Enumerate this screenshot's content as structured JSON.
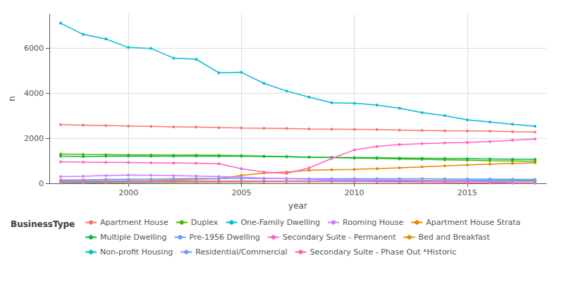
{
  "chart_data": {
    "type": "line",
    "x": [
      1997,
      1998,
      1999,
      2000,
      2001,
      2002,
      2003,
      2004,
      2005,
      2006,
      2007,
      2008,
      2009,
      2010,
      2011,
      2012,
      2013,
      2014,
      2015,
      2016,
      2017,
      2018
    ],
    "series": [
      {
        "name": "Apartment House",
        "color": "#F8766D",
        "values": [
          2600,
          2580,
          2560,
          2540,
          2520,
          2500,
          2490,
          2470,
          2450,
          2440,
          2430,
          2410,
          2400,
          2390,
          2380,
          2360,
          2340,
          2330,
          2320,
          2310,
          2290,
          2270
        ]
      },
      {
        "name": "Apartment House Strata",
        "color": "#E58700",
        "values": [
          50,
          60,
          80,
          100,
          120,
          150,
          180,
          200,
          350,
          450,
          500,
          580,
          600,
          620,
          650,
          690,
          730,
          770,
          810,
          850,
          880,
          910
        ]
      },
      {
        "name": "Bed and Breakfast",
        "color": "#C99800",
        "values": [
          18,
          22,
          27,
          32,
          37,
          42,
          47,
          52,
          57,
          62,
          67,
          72,
          77,
          82,
          86,
          88,
          90,
          91,
          92,
          91,
          90,
          89
        ]
      },
      {
        "name": "Duplex",
        "color": "#53B400",
        "values": [
          1300,
          1280,
          1270,
          1260,
          1260,
          1250,
          1250,
          1240,
          1230,
          1200,
          1180,
          1160,
          1140,
          1120,
          1100,
          1080,
          1060,
          1040,
          1020,
          1000,
          990,
          980
        ]
      },
      {
        "name": "Multiple Dwelling",
        "color": "#00BA38",
        "values": [
          1200,
          1190,
          1200,
          1210,
          1200,
          1200,
          1210,
          1200,
          1200,
          1190,
          1180,
          1160,
          1150,
          1140,
          1130,
          1120,
          1110,
          1100,
          1090,
          1080,
          1070,
          1060
        ]
      },
      {
        "name": "Non-profit Housing",
        "color": "#00BFC4",
        "values": [
          60,
          65,
          70,
          75,
          80,
          85,
          90,
          95,
          100,
          105,
          105,
          105,
          108,
          110,
          112,
          115,
          118,
          120,
          122,
          125,
          127,
          130
        ]
      },
      {
        "name": "One-Family Dwelling",
        "color": "#00BCD8",
        "values": [
          7100,
          6600,
          6400,
          6020,
          5980,
          5550,
          5500,
          4900,
          4920,
          4430,
          4090,
          3820,
          3570,
          3550,
          3470,
          3330,
          3130,
          3000,
          2810,
          2720,
          2620,
          2530
        ]
      },
      {
        "name": "Pre-1956 Dwelling",
        "color": "#619CFF",
        "values": [
          150,
          160,
          170,
          180,
          190,
          200,
          210,
          210,
          210,
          210,
          210,
          205,
          200,
          200,
          200,
          200,
          200,
          195,
          190,
          185,
          180,
          175
        ]
      },
      {
        "name": "Residential/Commercial",
        "color": "#6C9EFF",
        "values": [
          50,
          55,
          60,
          65,
          70,
          75,
          80,
          85,
          90,
          95,
          100,
          105,
          108,
          110,
          112,
          114,
          116,
          118,
          120,
          122,
          125,
          130
        ]
      },
      {
        "name": "Rooming House",
        "color": "#C77CFF",
        "values": [
          300,
          310,
          340,
          370,
          360,
          340,
          320,
          300,
          270,
          230,
          200,
          180,
          160,
          155,
          150,
          145,
          130,
          115,
          90,
          60,
          35,
          15
        ]
      },
      {
        "name": "Secondary Suite - Permanent",
        "color": "#FF61C3",
        "values": [
          950,
          940,
          930,
          920,
          910,
          900,
          890,
          870,
          650,
          500,
          440,
          680,
          1100,
          1480,
          1630,
          1720,
          1760,
          1790,
          1810,
          1850,
          1910,
          1960
        ]
      },
      {
        "name": "Secondary Suite - Phase Out *Historic",
        "color": "#FF68A1",
        "values": [
          120,
          120,
          118,
          115,
          112,
          110,
          105,
          100,
          95,
          90,
          85,
          80,
          75,
          70,
          65,
          58,
          50,
          40,
          28,
          18,
          10,
          5
        ]
      }
    ],
    "xlabel": "year",
    "ylabel": "n",
    "xlim": [
      1996.5,
      2018.5
    ],
    "ylim": [
      0,
      7500
    ],
    "xticks": [
      2000,
      2005,
      2010,
      2015
    ],
    "yticks": [
      0,
      2000,
      4000,
      6000
    ],
    "grid": true,
    "legend": "bottom",
    "legend_title": "BusinessType",
    "legend_order": [
      "Apartment House",
      "Duplex",
      "One-Family Dwelling",
      "Rooming House",
      "Apartment House Strata",
      "Multiple Dwelling",
      "Pre-1956 Dwelling",
      "Secondary Suite - Permanent",
      "Bed and Breakfast",
      "Non-profit Housing",
      "Residential/Commercial",
      "Secondary Suite - Phase Out *Historic"
    ]
  }
}
